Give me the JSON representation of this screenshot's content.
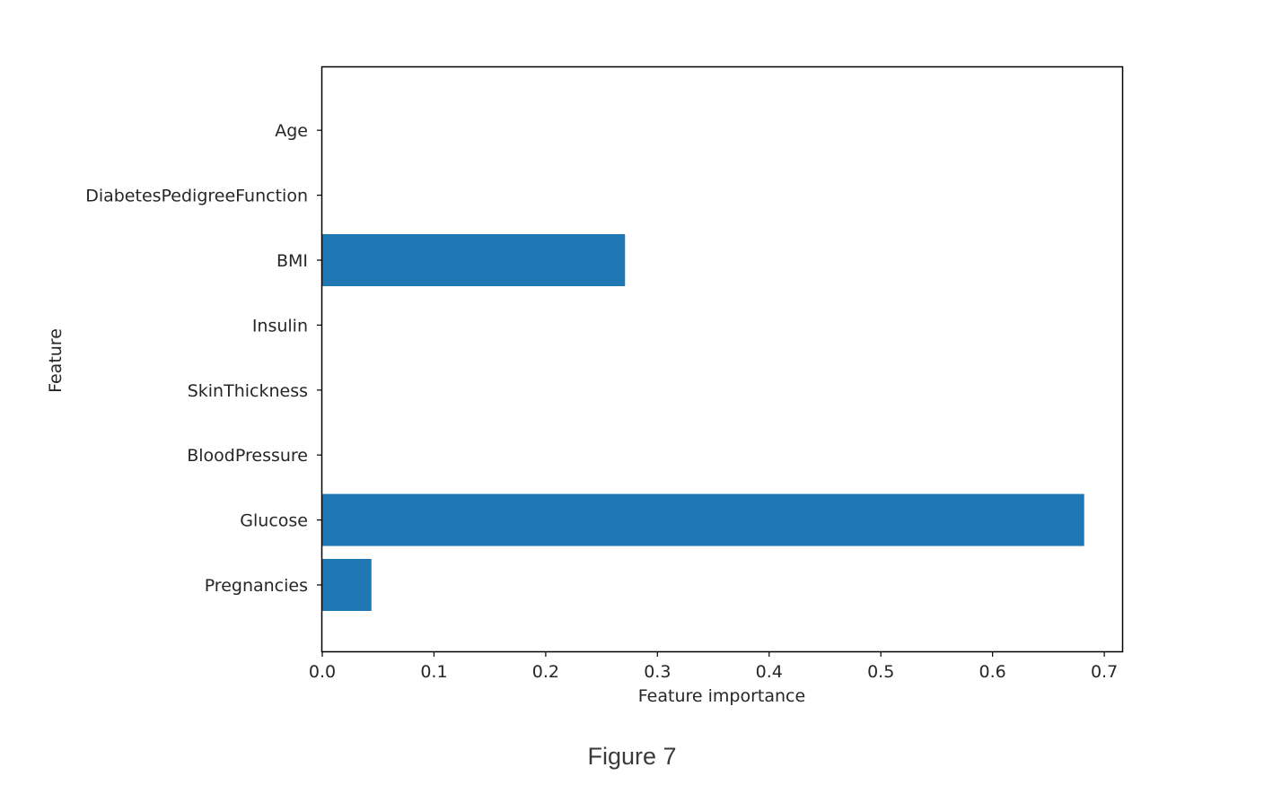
{
  "figure": {
    "caption": "Figure 7"
  },
  "chart_data": {
    "type": "bar",
    "orientation": "horizontal",
    "categories": [
      "Pregnancies",
      "Glucose",
      "BloodPressure",
      "SkinThickness",
      "Insulin",
      "BMI",
      "DiabetesPedigreeFunction",
      "Age"
    ],
    "values": [
      0.044,
      0.682,
      0.0,
      0.0,
      0.0,
      0.271,
      0.0,
      0.0
    ],
    "title": "",
    "xlabel": "Feature importance",
    "ylabel": "Feature",
    "xlim": [
      0.0,
      0.716
    ],
    "xticks": [
      "0.0",
      "0.1",
      "0.2",
      "0.3",
      "0.4",
      "0.5",
      "0.6",
      "0.7"
    ],
    "bar_color": "#1f77b4",
    "grid": false,
    "legend": "none"
  }
}
